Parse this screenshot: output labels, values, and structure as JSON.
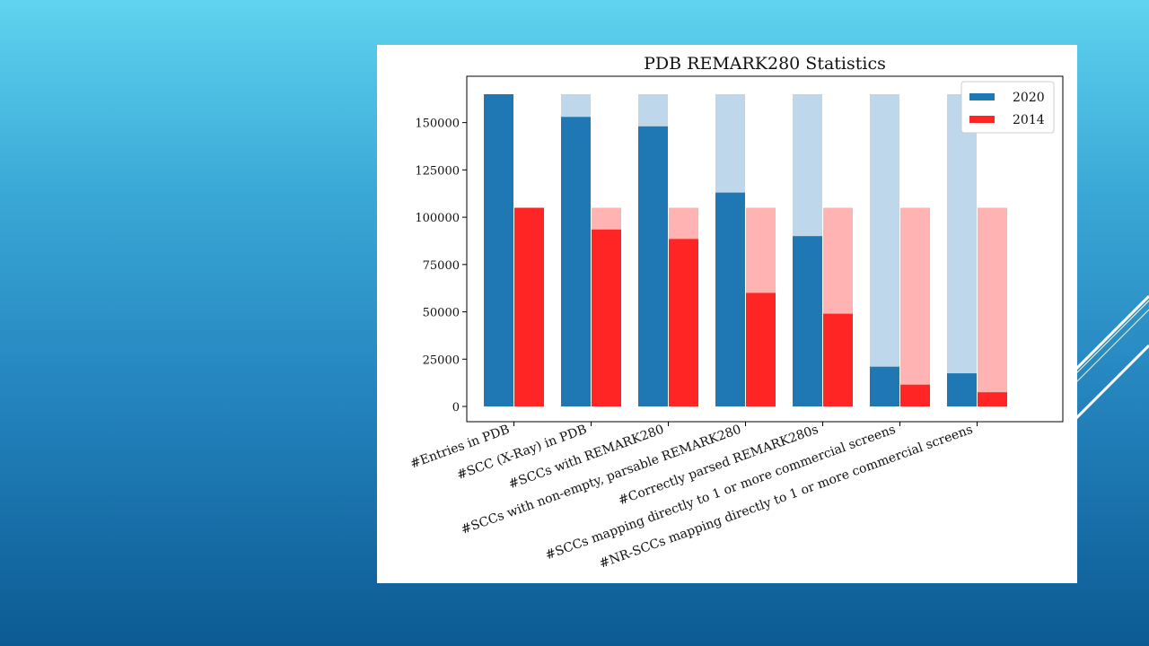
{
  "chart_data": {
    "type": "bar",
    "title": "PDB REMARK280 Statistics",
    "xlabel": "",
    "ylabel": "",
    "ylim": [
      0,
      165000
    ],
    "yticks": [
      0,
      25000,
      50000,
      75000,
      100000,
      125000,
      150000
    ],
    "ytick_labels": [
      "0",
      "25000",
      "50000",
      "75000",
      "100000",
      "125000",
      "150000"
    ],
    "categories": [
      "#Entries in PDB",
      "#SCC (X-Ray) in PDB",
      "#SCCs with REMARK280",
      "#SCCs with non-empty, parsable REMARK280",
      "#Correctly parsed REMARK280s",
      "#SCCs mapping directly to 1 or more commercial screens",
      "#NR-SCCs mapping directly to 1 or more commercial screens"
    ],
    "series": [
      {
        "name": "2020",
        "color": "#1f77b4",
        "background_color": "#bfd7ea",
        "reference_total": 165000,
        "values": [
          165000,
          153000,
          148000,
          113000,
          90000,
          21000,
          17500
        ]
      },
      {
        "name": "2014",
        "color": "#ff2525",
        "background_color": "#ffb3b3",
        "reference_total": 105000,
        "values": [
          105000,
          93500,
          88500,
          60000,
          49000,
          11500,
          7500
        ]
      }
    ],
    "legend_position": "top-right",
    "grid": false
  }
}
